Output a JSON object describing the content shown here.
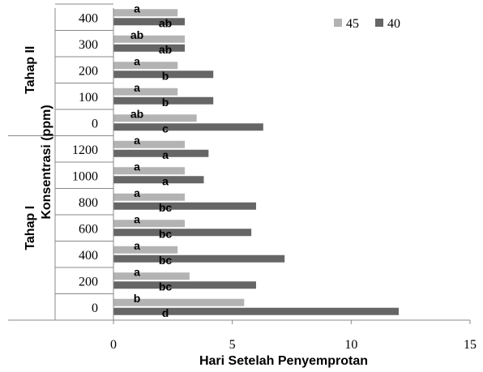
{
  "chart_data": {
    "type": "bar",
    "orientation": "horizontal",
    "xlabel": "Hari Setelah Penyemprotan",
    "ylabel": "Konsentrasi (ppm)",
    "xlim": [
      0,
      15
    ],
    "xticks": [
      "0",
      "5",
      "10",
      "15"
    ],
    "legend": {
      "placement": "top-right"
    },
    "grid": false,
    "groups": [
      {
        "name": "Tahap I",
        "categories": [
          "0",
          "200",
          "400",
          "600",
          "800",
          "1000",
          "1200"
        ]
      },
      {
        "name": "Tahap II",
        "categories": [
          "0",
          "100",
          "200",
          "300",
          "400"
        ]
      }
    ],
    "categories": [
      "0",
      "200",
      "400",
      "600",
      "800",
      "1000",
      "1200",
      "0",
      "100",
      "200",
      "300",
      "400"
    ],
    "series": [
      {
        "name": "45",
        "color": "#b3b3b3",
        "values": [
          5.5,
          3.2,
          2.7,
          3.0,
          3.0,
          3.0,
          3.0,
          3.5,
          2.7,
          2.7,
          3.0,
          2.7
        ],
        "labels": [
          "b",
          "a",
          "a",
          "a",
          "a",
          "a",
          "a",
          "ab",
          "a",
          "a",
          "ab",
          "a"
        ]
      },
      {
        "name": "40",
        "color": "#666666",
        "values": [
          12.0,
          6.0,
          7.2,
          5.8,
          6.0,
          3.8,
          4.0,
          6.3,
          4.2,
          4.2,
          3.0,
          3.0
        ],
        "labels": [
          "d",
          "bc",
          "bc",
          "bc",
          "bc",
          "a",
          "a",
          "c",
          "b",
          "b",
          "ab",
          "ab"
        ]
      }
    ]
  }
}
